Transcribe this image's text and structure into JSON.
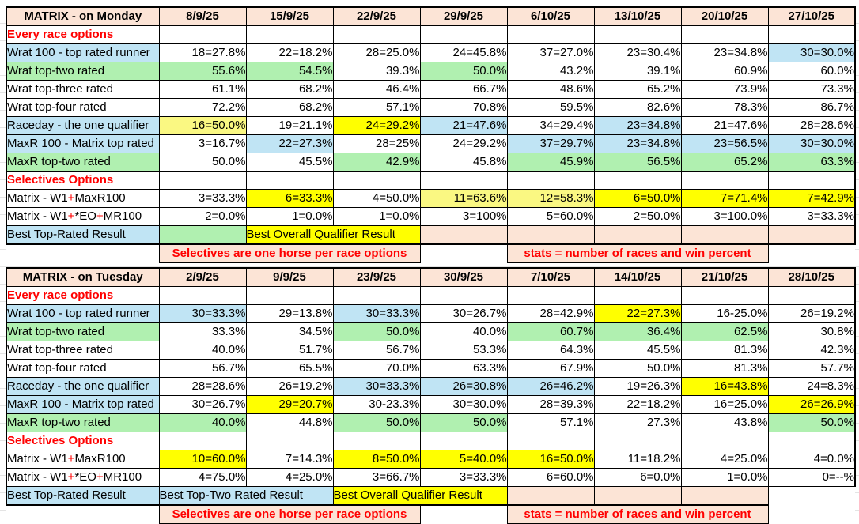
{
  "colors": {
    "header": "#FCE4D6",
    "pink": "#FCE4D6",
    "blue": "#C0E4F4",
    "green": "#B0F0B0",
    "yellow": "#FFFF00",
    "pale_yellow": "#FAF882",
    "white": "#FFFFFF",
    "red": "#FF0000",
    "border": "#000000",
    "gridline": "#E4E4E4"
  },
  "tables": [
    {
      "title": "MATRIX - on Monday",
      "dates": [
        "8/9/25",
        "15/9/25",
        "22/9/25",
        "29/9/25",
        "6/10/25",
        "13/10/25",
        "20/10/25",
        "27/10/25"
      ],
      "rows": [
        {
          "label": "Every race options",
          "type": "section",
          "cells": [
            {
              "v": ""
            },
            {
              "v": ""
            },
            {
              "v": ""
            },
            {
              "v": ""
            },
            {
              "v": ""
            },
            {
              "v": ""
            },
            {
              "v": ""
            },
            {
              "v": ""
            }
          ]
        },
        {
          "label": "Wrat 100 - top rated runner",
          "label_bg": "blue",
          "cells": [
            {
              "v": "18=27.8%"
            },
            {
              "v": "22=18.2%"
            },
            {
              "v": "28=25.0%"
            },
            {
              "v": "24=45.8%"
            },
            {
              "v": "37=27.0%"
            },
            {
              "v": "23=30.4%"
            },
            {
              "v": "23=34.8%"
            },
            {
              "v": "30=30.0%",
              "bg": "blue"
            }
          ]
        },
        {
          "label": "Wrat top-two rated",
          "label_bg": "green",
          "cells": [
            {
              "v": "55.6%",
              "bg": "green"
            },
            {
              "v": "54.5%",
              "bg": "green"
            },
            {
              "v": "39.3%"
            },
            {
              "v": "50.0%",
              "bg": "green"
            },
            {
              "v": "43.2%"
            },
            {
              "v": "39.1%"
            },
            {
              "v": "60.9%"
            },
            {
              "v": "60.0%"
            }
          ]
        },
        {
          "label": "Wrat top-three rated",
          "cells": [
            {
              "v": "61.1%"
            },
            {
              "v": "68.2%"
            },
            {
              "v": "46.4%"
            },
            {
              "v": "66.7%"
            },
            {
              "v": "48.6%"
            },
            {
              "v": "65.2%"
            },
            {
              "v": "73.9%"
            },
            {
              "v": "73.3%"
            }
          ]
        },
        {
          "label": "Wrat top-four rated",
          "cells": [
            {
              "v": "72.2%"
            },
            {
              "v": "68.2%"
            },
            {
              "v": "57.1%"
            },
            {
              "v": "70.8%"
            },
            {
              "v": "59.5%"
            },
            {
              "v": "82.6%"
            },
            {
              "v": "78.3%"
            },
            {
              "v": "86.7%"
            }
          ]
        },
        {
          "label": "Raceday - the one qualifier",
          "label_bg": "blue",
          "cells": [
            {
              "v": "16=50.0%",
              "bg": "pale_yellow"
            },
            {
              "v": "19=21.1%"
            },
            {
              "v": "24=29.2%",
              "bg": "yellow"
            },
            {
              "v": "21=47.6%",
              "bg": "blue"
            },
            {
              "v": "34=29.4%"
            },
            {
              "v": "23=34.8%",
              "bg": "blue"
            },
            {
              "v": "21=47.6%"
            },
            {
              "v": "28=28.6%"
            }
          ]
        },
        {
          "label": "MaxR 100 - Matrix top rated",
          "label_bg": "blue",
          "cells": [
            {
              "v": "3=16.7%"
            },
            {
              "v": "22=27.3%",
              "bg": "blue"
            },
            {
              "v": "28=25%"
            },
            {
              "v": "24=29.2%"
            },
            {
              "v": "37=29.7%",
              "bg": "blue"
            },
            {
              "v": "23=34.8%",
              "bg": "blue"
            },
            {
              "v": "23=56.5%",
              "bg": "blue"
            },
            {
              "v": "30=30.0%",
              "bg": "blue"
            }
          ]
        },
        {
          "label": "MaxR top-two rated",
          "label_bg": "green",
          "cells": [
            {
              "v": "50.0%"
            },
            {
              "v": "45.5%"
            },
            {
              "v": "42.9%",
              "bg": "green"
            },
            {
              "v": "45.8%"
            },
            {
              "v": "45.9%",
              "bg": "green"
            },
            {
              "v": "56.5%",
              "bg": "green"
            },
            {
              "v": "65.2%",
              "bg": "green"
            },
            {
              "v": "63.3%",
              "bg": "green"
            }
          ]
        },
        {
          "label": "Selectives Options",
          "type": "section",
          "cells": [
            {
              "v": ""
            },
            {
              "v": ""
            },
            {
              "v": ""
            },
            {
              "v": ""
            },
            {
              "v": ""
            },
            {
              "v": ""
            },
            {
              "v": ""
            },
            {
              "v": ""
            }
          ]
        },
        {
          "label": "Matrix - W1+MaxR100",
          "label_parts": [
            [
              "Matrix - W1",
              "k"
            ],
            [
              "+",
              "r"
            ],
            [
              "MaxR100",
              "k"
            ]
          ],
          "cells": [
            {
              "v": "3=33.3%"
            },
            {
              "v": "6=33.3%",
              "bg": "yellow"
            },
            {
              "v": "4=50.0%"
            },
            {
              "v": "11=63.6%",
              "bg": "pale_yellow"
            },
            {
              "v": "12=58.3%",
              "bg": "pale_yellow"
            },
            {
              "v": "6=50.0%",
              "bg": "yellow"
            },
            {
              "v": "7=71.4%",
              "bg": "yellow"
            },
            {
              "v": "7=42.9%",
              "bg": "yellow"
            }
          ]
        },
        {
          "label": "Matrix - W1+*EO+MR100",
          "label_parts": [
            [
              "Matrix - W1",
              "k"
            ],
            [
              "+",
              "r"
            ],
            [
              "*EO",
              "k"
            ],
            [
              "+",
              "r"
            ],
            [
              "MR100",
              "k"
            ]
          ],
          "cells": [
            {
              "v": "2=0.0%"
            },
            {
              "v": "1=0.0%"
            },
            {
              "v": "1=0.0%"
            },
            {
              "v": "3=100%"
            },
            {
              "v": "5=60.0%"
            },
            {
              "v": "2=50.0%"
            },
            {
              "v": "3=100.0%"
            },
            {
              "v": "3=33.3%"
            }
          ]
        }
      ],
      "result_row": [
        {
          "text": "Best Top-Rated Result",
          "bg": "blue",
          "span": 1,
          "label": true
        },
        {
          "text": "",
          "bg": "green",
          "span": 1
        },
        {
          "text": "Best Overall Qualifier Result",
          "bg": "yellow",
          "span": 2
        },
        {
          "text": "",
          "bg": "pink",
          "span": 1
        },
        {
          "text": "",
          "bg": "pink",
          "span": 1
        },
        {
          "text": "",
          "bg": "pink",
          "span": 1
        },
        {
          "text": "",
          "bg": "pink",
          "span": 1
        },
        {
          "text": "",
          "bg": "pink",
          "span": 1
        }
      ],
      "banner_row": [
        {
          "text": "",
          "span": 1
        },
        {
          "text": "Selectives are one horse per race options",
          "span": 3
        },
        {
          "text": "",
          "span": 1
        },
        {
          "text": "stats = number of races and win percent",
          "span": 3
        },
        {
          "text": "",
          "span": 1
        }
      ]
    },
    {
      "title": "MATRIX - on Tuesday",
      "dates": [
        "2/9/25",
        "9/9/25",
        "23/9/25",
        "30/9/25",
        "7/10/25",
        "14/10/25",
        "21/10/25",
        "28/10/25"
      ],
      "rows": [
        {
          "label": "Every race options",
          "type": "section",
          "cells": [
            {
              "v": ""
            },
            {
              "v": ""
            },
            {
              "v": ""
            },
            {
              "v": ""
            },
            {
              "v": ""
            },
            {
              "v": ""
            },
            {
              "v": ""
            },
            {
              "v": ""
            }
          ]
        },
        {
          "label": "Wrat 100 - top rated runner",
          "label_bg": "blue",
          "cells": [
            {
              "v": "30=33.3%",
              "bg": "blue"
            },
            {
              "v": "29=13.8%"
            },
            {
              "v": "30=33.3%",
              "bg": "blue"
            },
            {
              "v": "30=26.7%"
            },
            {
              "v": "28=42.9%"
            },
            {
              "v": "22=27.3%",
              "bg": "yellow"
            },
            {
              "v": "16-25.0%"
            },
            {
              "v": "26=19.2%"
            }
          ]
        },
        {
          "label": "Wrat top-two rated",
          "label_bg": "green",
          "cells": [
            {
              "v": "33.3%"
            },
            {
              "v": "34.5%"
            },
            {
              "v": "50.0%",
              "bg": "green"
            },
            {
              "v": "40.0%"
            },
            {
              "v": "60.7%",
              "bg": "green"
            },
            {
              "v": "36.4%",
              "bg": "green"
            },
            {
              "v": "62.5%",
              "bg": "green"
            },
            {
              "v": "30.8%"
            }
          ]
        },
        {
          "label": "Wrat top-three rated",
          "cells": [
            {
              "v": "40.0%"
            },
            {
              "v": "51.7%"
            },
            {
              "v": "56.7%"
            },
            {
              "v": "53.3%"
            },
            {
              "v": "64.3%"
            },
            {
              "v": "45.5%"
            },
            {
              "v": "81.3%"
            },
            {
              "v": "42.3%"
            }
          ]
        },
        {
          "label": "Wrat top-four rated",
          "cells": [
            {
              "v": "56.7%"
            },
            {
              "v": "65.5%"
            },
            {
              "v": "70.0%"
            },
            {
              "v": "63.3%"
            },
            {
              "v": "67.9%"
            },
            {
              "v": "50.0%"
            },
            {
              "v": "81.3%"
            },
            {
              "v": "57.7%"
            }
          ]
        },
        {
          "label": "Raceday - the one qualifier",
          "label_bg": "blue",
          "cells": [
            {
              "v": "28=28.6%"
            },
            {
              "v": "26=19.2%"
            },
            {
              "v": "30=33.3%",
              "bg": "blue"
            },
            {
              "v": "26=30.8%",
              "bg": "blue"
            },
            {
              "v": "26=46.2%",
              "bg": "blue"
            },
            {
              "v": "19=26.3%"
            },
            {
              "v": "16=43.8%",
              "bg": "yellow"
            },
            {
              "v": "24=8.3%"
            }
          ]
        },
        {
          "label": "MaxR 100 - Matrix top rated",
          "label_bg": "blue",
          "cells": [
            {
              "v": "30=26.7%"
            },
            {
              "v": "29=20.7%",
              "bg": "yellow"
            },
            {
              "v": "30-23.3%"
            },
            {
              "v": "30=30.0%"
            },
            {
              "v": "28=39.3%"
            },
            {
              "v": "22=18.2%"
            },
            {
              "v": "16=25.0%"
            },
            {
              "v": "26=26.9%",
              "bg": "yellow"
            }
          ]
        },
        {
          "label": "MaxR top-two rated",
          "label_bg": "green",
          "cells": [
            {
              "v": "40.0%",
              "bg": "green"
            },
            {
              "v": "44.8%"
            },
            {
              "v": "50.0%",
              "bg": "green"
            },
            {
              "v": "50.0%",
              "bg": "green"
            },
            {
              "v": "57.1%"
            },
            {
              "v": "27.3%"
            },
            {
              "v": "43.8%"
            },
            {
              "v": "50.0%",
              "bg": "green"
            }
          ]
        },
        {
          "label": "Selectives Options",
          "type": "section",
          "cells": [
            {
              "v": ""
            },
            {
              "v": ""
            },
            {
              "v": ""
            },
            {
              "v": ""
            },
            {
              "v": ""
            },
            {
              "v": ""
            },
            {
              "v": ""
            },
            {
              "v": ""
            }
          ]
        },
        {
          "label": "Matrix - W1+MaxR100",
          "label_parts": [
            [
              "Matrix - W1",
              "k"
            ],
            [
              "+",
              "r"
            ],
            [
              "MaxR100",
              "k"
            ]
          ],
          "cells": [
            {
              "v": "10=60.0%",
              "bg": "yellow"
            },
            {
              "v": "7=14.3%"
            },
            {
              "v": "8=50.0%",
              "bg": "yellow"
            },
            {
              "v": "5=40.0%",
              "bg": "yellow"
            },
            {
              "v": "16=50.0%",
              "bg": "yellow"
            },
            {
              "v": "11=18.2%"
            },
            {
              "v": "4=25.0%"
            },
            {
              "v": "4=0.0%"
            }
          ]
        },
        {
          "label": "Matrix - W1+*EO+MR100",
          "label_parts": [
            [
              "Matrix - W1",
              "k"
            ],
            [
              "+",
              "r"
            ],
            [
              "*EO",
              "k"
            ],
            [
              "+",
              "r"
            ],
            [
              "MR100",
              "k"
            ]
          ],
          "cells": [
            {
              "v": "4=75.0%"
            },
            {
              "v": "4=25.0%"
            },
            {
              "v": "3=66.7%"
            },
            {
              "v": "3=33.3%"
            },
            {
              "v": "6=60.0%"
            },
            {
              "v": "6=0.0%"
            },
            {
              "v": "1=0.0%"
            },
            {
              "v": "0=--%"
            }
          ]
        }
      ],
      "result_row": [
        {
          "text": "Best Top-Rated Result",
          "bg": "blue",
          "span": 1,
          "label": true
        },
        {
          "text": "Best Top-Two Rated Result",
          "bg": "blue",
          "span": 2
        },
        {
          "text": "Best Overall Qualifier Result",
          "bg": "yellow",
          "span": 2
        },
        {
          "text": "",
          "bg": "pink",
          "span": 1
        },
        {
          "text": "",
          "bg": "pink",
          "span": 1
        },
        {
          "text": "",
          "bg": "pink",
          "span": 1
        },
        {
          "text": "",
          "bg": "none",
          "span": 1
        }
      ],
      "banner_row": [
        {
          "text": "",
          "span": 1
        },
        {
          "text": "Selectives are one horse per race options",
          "span": 3
        },
        {
          "text": "",
          "span": 1
        },
        {
          "text": "stats = number of races and win percent",
          "span": 3
        },
        {
          "text": "",
          "span": 1
        }
      ]
    }
  ]
}
